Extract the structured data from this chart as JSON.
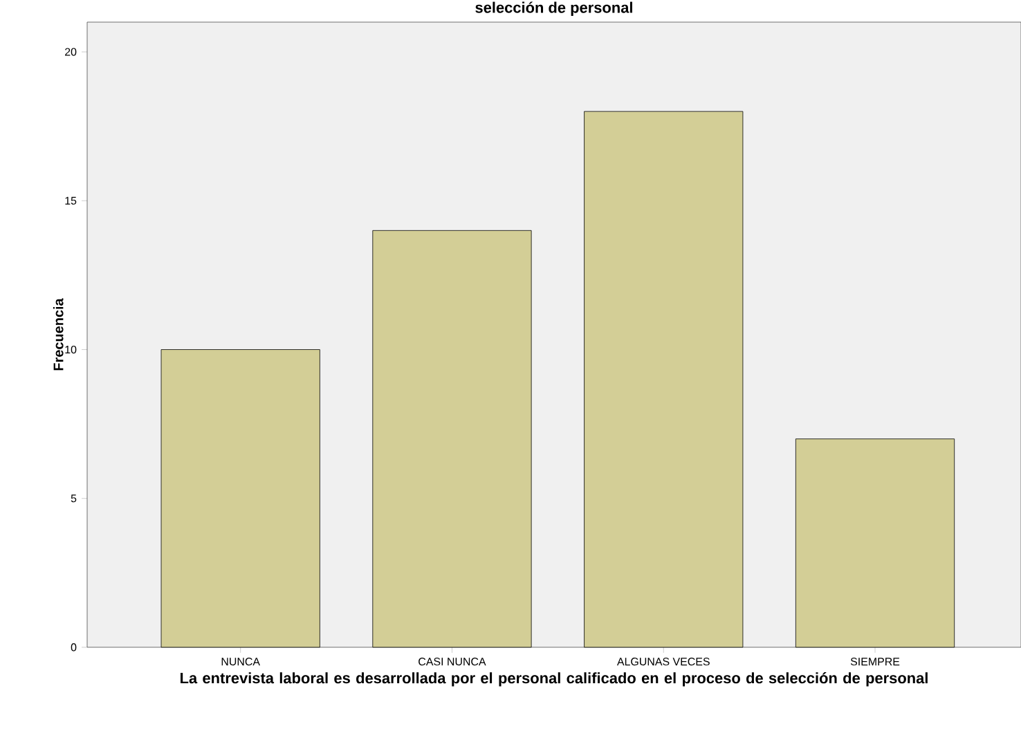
{
  "chart_data": {
    "type": "bar",
    "title": "selección de personal",
    "xlabel": "La entrevista laboral es desarrollada por el personal calificado en el proceso de selección de personal",
    "ylabel": "Frecuencia",
    "categories": [
      "NUNCA",
      "CASI NUNCA",
      "ALGUNAS VECES",
      "SIEMPRE"
    ],
    "values": [
      10,
      14,
      18,
      7
    ],
    "color": "#d3ce96",
    "ylim": [
      0,
      21
    ],
    "yticks": [
      0,
      5,
      10,
      15,
      20
    ],
    "grid": false
  }
}
